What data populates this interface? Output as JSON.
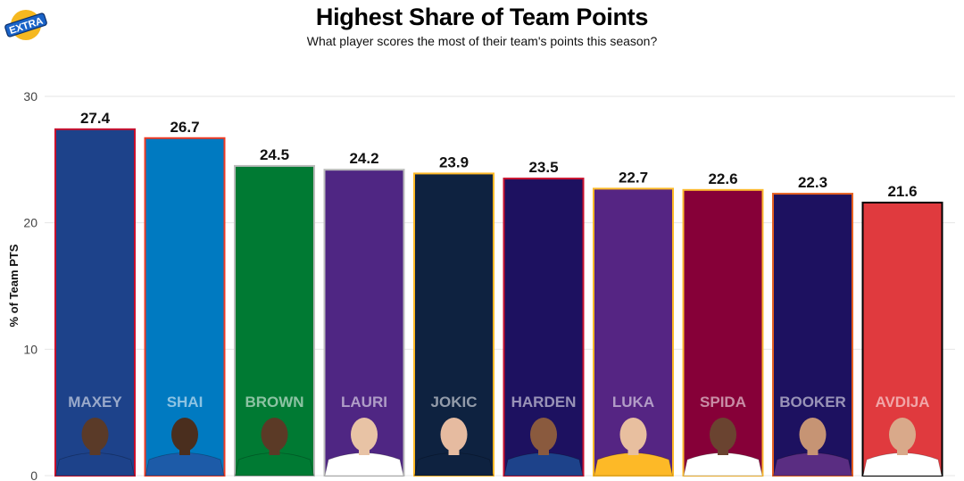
{
  "logo": {
    "text": "EXTRA",
    "colors": [
      "#f5b820",
      "#1a63c7"
    ]
  },
  "chart_data": {
    "type": "bar",
    "title": "Highest Share of Team Points",
    "subtitle": "What player scores the most of their team's points this season?",
    "xlabel": "",
    "ylabel": "% of Team PTS",
    "ylim": [
      0,
      30
    ],
    "yticks": [
      0,
      10,
      20,
      30
    ],
    "grid": true,
    "categories": [
      "MAXEY",
      "SHAI",
      "BROWN",
      "LAURI",
      "JOKIC",
      "HARDEN",
      "LUKA",
      "SPIDA",
      "BOOKER",
      "AVDIJA"
    ],
    "values": [
      27.4,
      26.7,
      24.5,
      24.2,
      23.9,
      23.5,
      22.7,
      22.6,
      22.3,
      21.6
    ],
    "value_labels": [
      "27.4",
      "26.7",
      "24.5",
      "24.2",
      "23.9",
      "23.5",
      "22.7",
      "22.6",
      "22.3",
      "21.6"
    ],
    "bar_colors": [
      "#1d428a",
      "#007ac1",
      "#007a33",
      "#4f2683",
      "#0e2240",
      "#1d1160",
      "#552583",
      "#860038",
      "#1d1160",
      "#e03a3e"
    ],
    "bar_outlines": [
      "#c8102e",
      "#ef3b24",
      "#bbbbbb",
      "#bbbbbb",
      "#fdb927",
      "#c8102e",
      "#fdb927",
      "#fdbb30",
      "#e56020",
      "#000000"
    ],
    "jersey_colors": [
      "#1d428a",
      "#1d5ba8",
      "#007a33",
      "#ffffff",
      "#0e2240",
      "#1d428a",
      "#fdb927",
      "#ffffff",
      "#5a2d82",
      "#ffffff"
    ],
    "skin_tones": [
      "#5a3a28",
      "#4a2e1e",
      "#5b3a26",
      "#e8c3a5",
      "#e6bba0",
      "#8a5a3e",
      "#e8bf9f",
      "#6a4330",
      "#c69474",
      "#d9a98a"
    ]
  }
}
